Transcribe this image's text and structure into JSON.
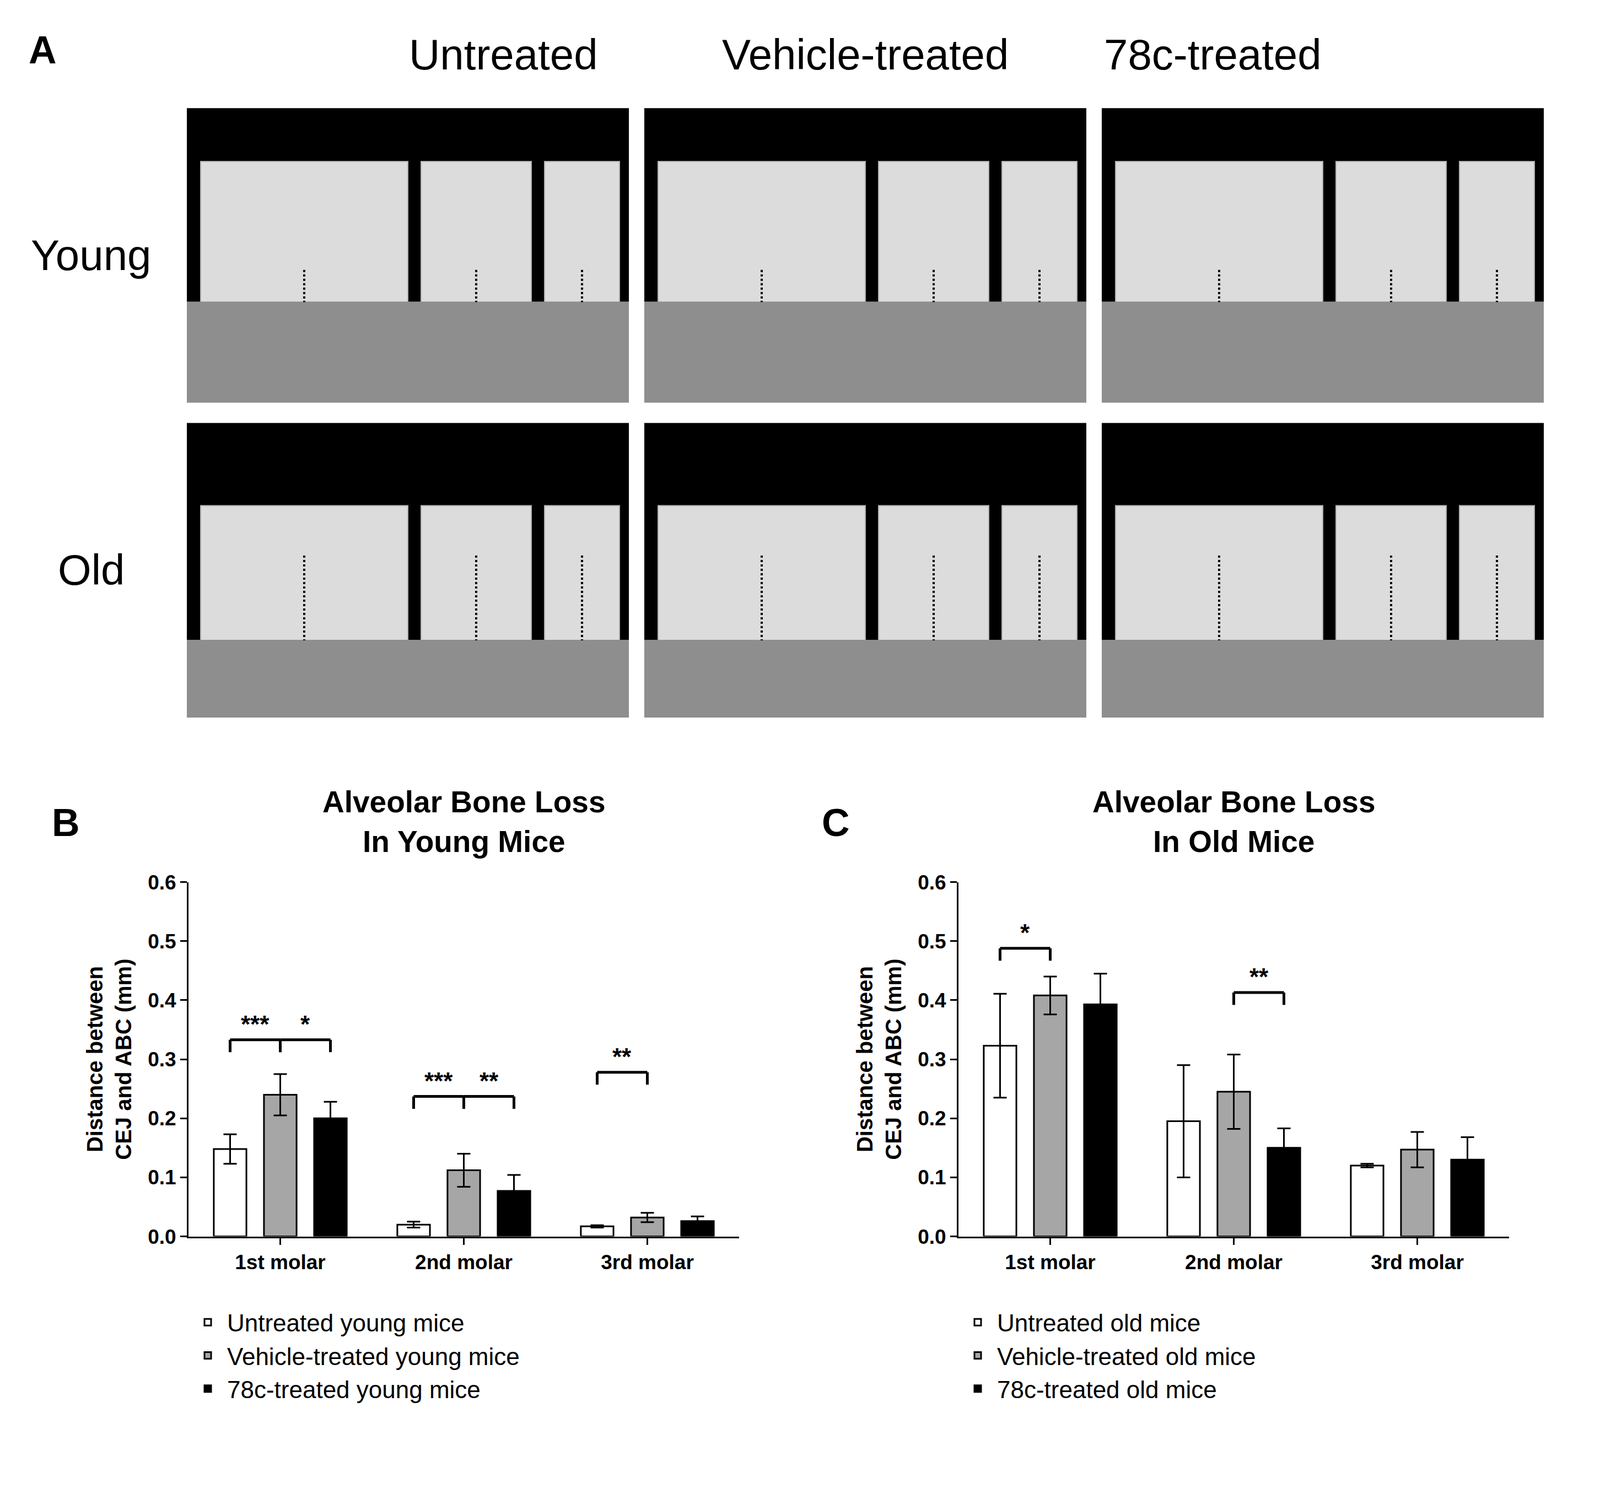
{
  "panel_a": {
    "label": "A",
    "columns": [
      "Untreated",
      "Vehicle-treated",
      "78c-treated"
    ],
    "rows": [
      "Young",
      "Old"
    ]
  },
  "chart_data": [
    {
      "type": "bar",
      "label": "B",
      "title": "Alveolar Bone Loss\nIn Young Mice",
      "y_label": "Distance between\nCEJ and ABC (mm)",
      "categories": [
        "1st molar",
        "2nd molar",
        "3rd molar"
      ],
      "series": [
        {
          "name": "Untreated young mice",
          "color": "#ffffff",
          "values": [
            0.148,
            0.02,
            0.017
          ],
          "errors": [
            0.025,
            0.005,
            0.002
          ]
        },
        {
          "name": "Vehicle-treated young mice",
          "color": "#a6a6a6",
          "values": [
            0.24,
            0.112,
            0.032
          ],
          "errors": [
            0.035,
            0.028,
            0.008
          ]
        },
        {
          "name": "78c-treated young mice",
          "color": "#000000",
          "values": [
            0.2,
            0.077,
            0.026
          ],
          "errors": [
            0.028,
            0.027,
            0.008
          ]
        }
      ],
      "significance": [
        {
          "category": "1st molar",
          "between": [
            "Untreated young mice",
            "Vehicle-treated young mice"
          ],
          "label": "***",
          "y": 0.333
        },
        {
          "category": "1st molar",
          "between": [
            "Vehicle-treated young mice",
            "78c-treated young mice"
          ],
          "label": "*",
          "y": 0.333
        },
        {
          "category": "2nd molar",
          "between": [
            "Untreated young mice",
            "Vehicle-treated young mice"
          ],
          "label": "***",
          "y": 0.237
        },
        {
          "category": "2nd molar",
          "between": [
            "Vehicle-treated young mice",
            "78c-treated young mice"
          ],
          "label": "**",
          "y": 0.237
        },
        {
          "category": "3rd molar",
          "between": [
            "Untreated young mice",
            "Vehicle-treated young mice"
          ],
          "label": "**",
          "y": 0.278
        }
      ],
      "ylim": [
        0,
        0.6
      ],
      "yticks": [
        {
          "value": 0,
          "label": "0.0"
        },
        0.1,
        0.2,
        0.3,
        0.4,
        0.5,
        0.6
      ],
      "grid": false,
      "legend": "below"
    },
    {
      "type": "bar",
      "label": "C",
      "title": "Alveolar Bone Loss\nIn Old Mice",
      "y_label": "Distance between\nCEJ and ABC (mm)",
      "categories": [
        "1st molar",
        "2nd molar",
        "3rd molar"
      ],
      "series": [
        {
          "name": "Untreated old mice",
          "color": "#ffffff",
          "values": [
            0.323,
            0.195,
            0.12
          ],
          "errors": [
            0.088,
            0.095,
            0.003
          ]
        },
        {
          "name": "Vehicle-treated old mice",
          "color": "#a6a6a6",
          "values": [
            0.408,
            0.245,
            0.147
          ],
          "errors": [
            0.032,
            0.063,
            0.03
          ]
        },
        {
          "name": "78c-treated old mice",
          "color": "#000000",
          "values": [
            0.393,
            0.15,
            0.13
          ],
          "errors": [
            0.052,
            0.033,
            0.038
          ]
        }
      ],
      "significance": [
        {
          "category": "1st molar",
          "between": [
            "Untreated old mice",
            "Vehicle-treated old mice"
          ],
          "label": "*",
          "y": 0.488
        },
        {
          "category": "2nd molar",
          "between": [
            "Vehicle-treated old mice",
            "78c-treated old mice"
          ],
          "label": "**",
          "y": 0.413
        }
      ],
      "ylim": [
        0,
        0.6
      ],
      "yticks": [
        {
          "value": 0,
          "label": "0.0"
        },
        0.1,
        0.2,
        0.3,
        0.4,
        0.5,
        0.6
      ],
      "grid": false,
      "legend": "below"
    }
  ]
}
